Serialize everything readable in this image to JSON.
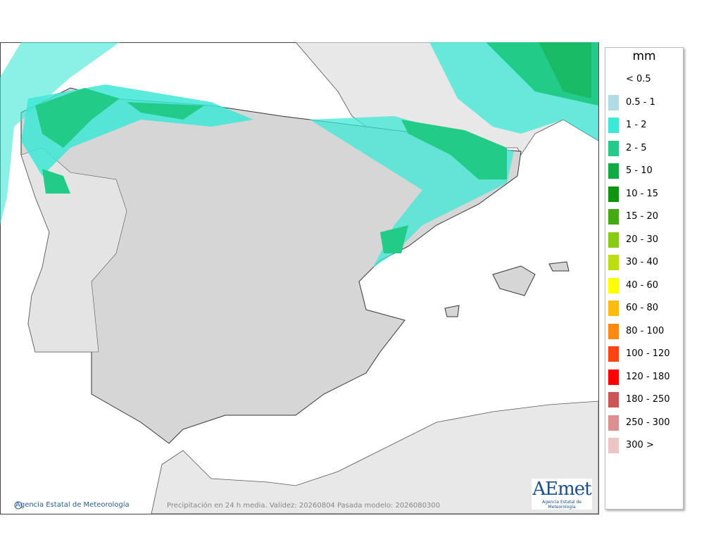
{
  "map": {
    "credit": "Agencia Estatal de Meteorología",
    "caption": "Precipitación en 24 h media. Validez: 20260804 Pasada modelo: 2026080300",
    "logo": "AEmet",
    "logo_subtitle": "Agencia Estatal de Meteorología"
  },
  "legend": {
    "title": "mm",
    "items": [
      {
        "label": "< 0.5"
      },
      {
        "label": "0.5 - 1",
        "color": "#b0dde3"
      },
      {
        "label": "1 - 2",
        "color": "#3ee8d6"
      },
      {
        "label": "2 - 5",
        "color": "#22cc88"
      },
      {
        "label": "5 - 10",
        "color": "#11aa44"
      },
      {
        "label": "10 - 15",
        "color": "#0f9610"
      },
      {
        "label": "15 - 20",
        "color": "#44aa11"
      },
      {
        "label": "20 - 30",
        "color": "#88cc11"
      },
      {
        "label": "30 - 40",
        "color": "#bbdd11"
      },
      {
        "label": "40 - 60",
        "color": "#ffff00"
      },
      {
        "label": "60 - 80",
        "color": "#ffbb11"
      },
      {
        "label": "80 - 100",
        "color": "#ff8811"
      },
      {
        "label": "100 - 120",
        "color": "#ff4411"
      },
      {
        "label": "120 - 180",
        "color": "#ff0000"
      },
      {
        "label": "180 - 250",
        "color": "#cc5555"
      },
      {
        "label": "250 - 300",
        "color": "#dd9090"
      },
      {
        "label": "300 >",
        "color": "#eec5c5"
      }
    ]
  }
}
